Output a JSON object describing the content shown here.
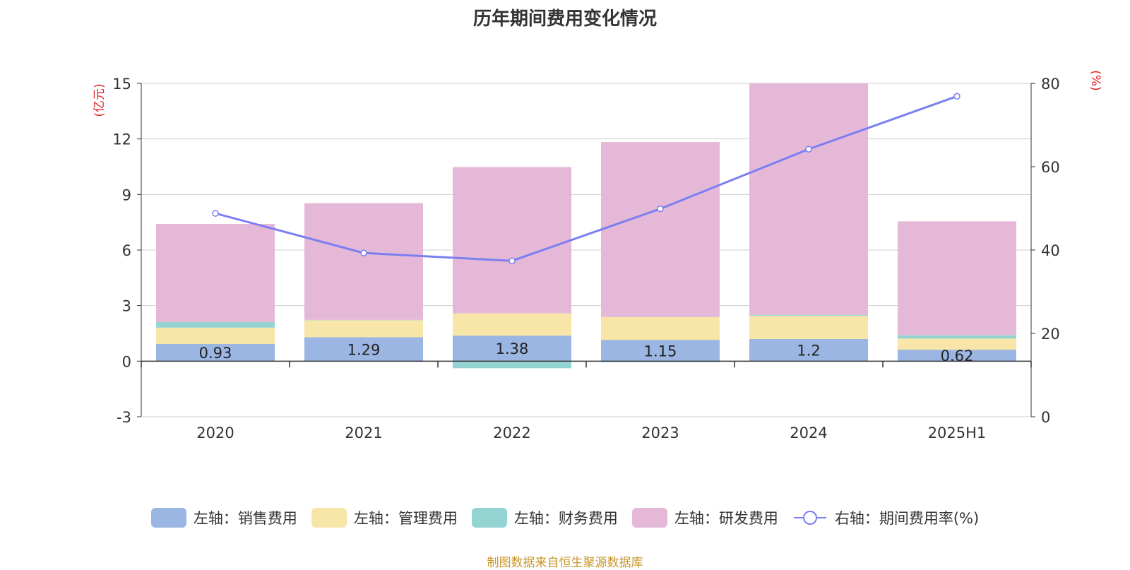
{
  "chart_data": {
    "type": "bar",
    "title": "历年期间费用变化情况",
    "categories": [
      "2020",
      "2021",
      "2022",
      "2023",
      "2024",
      "2025H1"
    ],
    "left_axis": {
      "unit": "(亿元)",
      "ylim": [
        -3,
        15
      ],
      "ticks": [
        -3,
        0,
        3,
        6,
        9,
        12,
        15
      ]
    },
    "right_axis": {
      "unit": "(%)",
      "ylim": [
        0,
        80
      ],
      "ticks": [
        0,
        20,
        40,
        60,
        80
      ]
    },
    "series": [
      {
        "name": "左轴：销售费用",
        "axis": "left",
        "stack": "fee",
        "color": "#9bb6e2",
        "values": [
          0.93,
          1.29,
          1.38,
          1.15,
          1.2,
          0.62
        ]
      },
      {
        "name": "左轴：管理费用",
        "axis": "left",
        "stack": "fee",
        "color": "#f8e6a8",
        "values": [
          0.88,
          0.92,
          1.2,
          1.23,
          1.25,
          0.6
        ]
      },
      {
        "name": "左轴：财务费用",
        "axis": "left",
        "stack": "fee",
        "color": "#93d4d3",
        "values": [
          0.3,
          0.02,
          -0.38,
          -0.05,
          0.05,
          0.18
        ]
      },
      {
        "name": "左轴：研发费用",
        "axis": "left",
        "stack": "fee",
        "color": "#e6b8d8",
        "values": [
          5.3,
          6.3,
          7.9,
          9.45,
          12.5,
          6.15
        ]
      },
      {
        "name": "右轴：期间费用率(%)",
        "axis": "right",
        "type": "line",
        "color": "#7b7ff0",
        "values": [
          48.8,
          39.3,
          37.4,
          49.9,
          64.2,
          76.9
        ]
      }
    ],
    "bar_labels": [
      "0.93",
      "1.29",
      "1.38",
      "1.15",
      "1.2",
      "0.62"
    ],
    "grid": true,
    "legend_position": "bottom"
  },
  "source_note": "制图数据来自恒生聚源数据库"
}
